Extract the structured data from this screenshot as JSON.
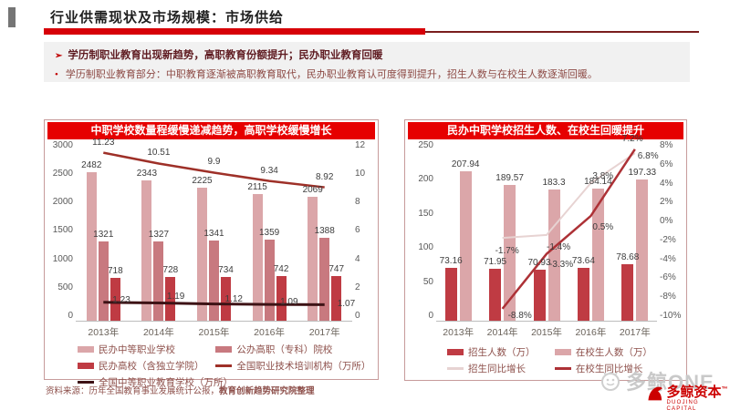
{
  "header": {
    "title": "行业供需现状及市场规模：市场供给"
  },
  "bullets": {
    "arrow": "➢",
    "dot": "•",
    "headline": "学历制职业教育出现新趋势，高职教育份额提升；民办职业教育回暖",
    "detail": "学历制职业教育部分：中职教育逐渐被高职教育取代，民办职业教育认可度得到提升，招生人数与在校生人数逐渐回暖。"
  },
  "source": {
    "prefix": "资料来源：历年全国教育事业发展统计公报，",
    "bold": "教育创新趋势研究院整理"
  },
  "watermark": {
    "text": "多鲸ONE"
  },
  "logo": {
    "name": "多鲸资本",
    "tm": "™",
    "sub": "DUOJING CAPITAL"
  },
  "colors": {
    "title_bar_red": "#e60000",
    "rule_red": "#d70008",
    "rule_dark": "#7a1d1d",
    "bar_light_pink": "#dba6a9",
    "bar_mid_pink": "#c8797f",
    "bar_dark_red": "#bf3b43",
    "line_maroon": "#9e3028",
    "line_near_black": "#3d1215",
    "line_light_pink": "#e7d3d2",
    "line_dark_red": "#ad3136"
  },
  "chart_data": [
    {
      "type": "bar",
      "title": "中职学校数量程缓慢递减趋势，高职学校缓慢增长",
      "categories": [
        "2013年",
        "2014年",
        "2015年",
        "2016年",
        "2017年"
      ],
      "left_axis": {
        "min": 0,
        "max": 3000,
        "ticks": [
          "3000",
          "2500",
          "2000",
          "1500",
          "1000",
          "500",
          "0"
        ]
      },
      "right_axis": {
        "min": 0,
        "max": 12,
        "ticks": [
          "12",
          "10",
          "8",
          "6",
          "4",
          "2",
          "0"
        ]
      },
      "grid": "off",
      "legend_position": "bottom",
      "bar_series": [
        {
          "name": "民办中等职业学校",
          "color": "#dba6a9",
          "values": [
            2482,
            2343,
            2225,
            2115,
            2069
          ],
          "labels": [
            "2482",
            "2343",
            "2225",
            "2115",
            "2069"
          ]
        },
        {
          "name": "公办高职（专科）院校",
          "color": "#c8797f",
          "values": [
            1321,
            1327,
            1341,
            1359,
            1388
          ],
          "labels": [
            "1321",
            "1327",
            "1341",
            "1359",
            "1388"
          ]
        },
        {
          "name": "民办高校（含独立学院）",
          "color": "#bf3b43",
          "values": [
            718,
            728,
            734,
            742,
            747
          ],
          "labels": [
            "718",
            "728",
            "734",
            "742",
            "747"
          ]
        }
      ],
      "line_series": [
        {
          "name": "全国职业技术培训机构（万所）",
          "color": "#9e3028",
          "stroke_width": 2.5,
          "values": [
            11.23,
            10.51,
            9.9,
            9.34,
            8.92
          ],
          "labels": [
            "11.23",
            "10.51",
            "9.9",
            "9.34",
            "8.92"
          ]
        },
        {
          "name": "全国中等职业教育学校（万所）",
          "color": "#3d1215",
          "stroke_width": 3,
          "values": [
            1.23,
            1.19,
            1.12,
            1.09,
            1.07
          ],
          "labels": [
            "1.23",
            "1.19",
            "1.12",
            "1.09",
            "1.07"
          ]
        }
      ]
    },
    {
      "type": "bar",
      "title": "民办中职学校招生人数、在校生回暖提升",
      "categories": [
        "2013年",
        "2014年",
        "2015年",
        "2016年",
        "2017年"
      ],
      "left_axis": {
        "min": 0,
        "max": 250,
        "ticks": [
          "250",
          "200",
          "150",
          "100",
          "50",
          "0"
        ]
      },
      "right_axis": {
        "min": -10,
        "max": 8,
        "ticks": [
          "8%",
          "6%",
          "4%",
          "2%",
          "0%",
          "-2%",
          "-4%",
          "-6%",
          "-8%",
          "-10%"
        ]
      },
      "grid": "off",
      "legend_position": "bottom",
      "bar_series": [
        {
          "name": "招生人数（万）",
          "color": "#bf3b43",
          "values": [
            73.16,
            71.95,
            70.93,
            73.64,
            78.68
          ],
          "labels": [
            "73.16",
            "71.95",
            "70.93",
            "73.64",
            "78.68"
          ]
        },
        {
          "name": "在校生人数（万）",
          "color": "#dba6a9",
          "values": [
            207.94,
            189.57,
            183.3,
            184.14,
            197.33
          ],
          "labels": [
            "207.94",
            "189.57",
            "183.3",
            "184.14",
            "197.33"
          ]
        }
      ],
      "line_series": [
        {
          "name": "招生同比增长",
          "color": "#e7d3d2",
          "stroke_width": 2,
          "values": [
            null,
            -1.7,
            -1.4,
            3.8,
            6.8
          ],
          "labels": [
            "",
            "-1.7%",
            "-1.4%",
            "3.8%",
            "6.8%"
          ]
        },
        {
          "name": "在校生同比增长",
          "color": "#ad3136",
          "stroke_width": 2.5,
          "values": [
            null,
            -8.8,
            -3.3,
            0.5,
            7.2
          ],
          "labels": [
            "",
            "-8.8%",
            "-3.3%",
            "0.5%",
            "7.2%"
          ]
        }
      ]
    }
  ]
}
